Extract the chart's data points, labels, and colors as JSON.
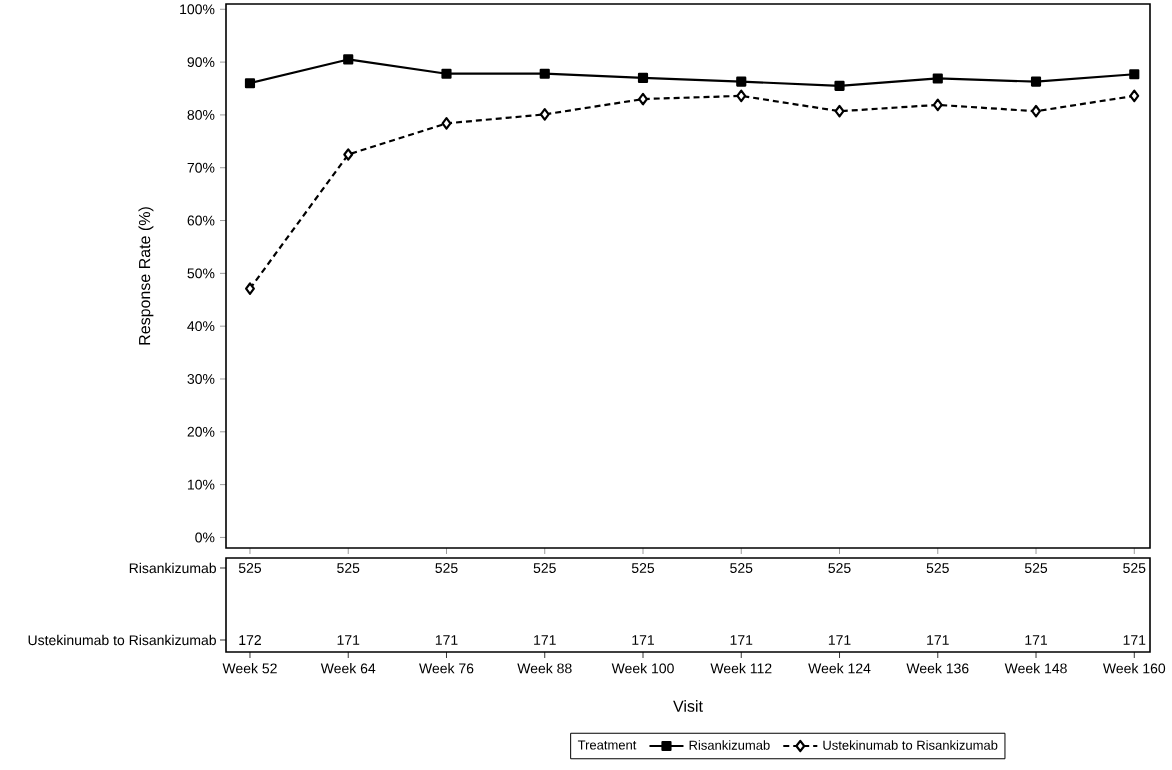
{
  "chart_data": {
    "type": "line",
    "categories": [
      "Week 52",
      "Week 64",
      "Week 76",
      "Week 88",
      "Week 100",
      "Week 112",
      "Week 124",
      "Week 136",
      "Week 148",
      "Week 160"
    ],
    "xlabel": "Visit",
    "ylabel": "Response Rate (%)",
    "ylim": [
      -2,
      101
    ],
    "yticks": [
      {
        "value": 0,
        "label": "0%"
      },
      {
        "value": 10,
        "label": "10%"
      },
      {
        "value": 20,
        "label": "20%"
      },
      {
        "value": 30,
        "label": "30%"
      },
      {
        "value": 40,
        "label": "40%"
      },
      {
        "value": 50,
        "label": "50%"
      },
      {
        "value": 60,
        "label": "60%"
      },
      {
        "value": 70,
        "label": "70%"
      },
      {
        "value": 80,
        "label": "80%"
      },
      {
        "value": 90,
        "label": "90%"
      },
      {
        "value": 100,
        "label": "100%"
      }
    ],
    "legend": "bottom",
    "legend_title": "Treatment",
    "grid": false,
    "series": [
      {
        "name": "Risankizumab",
        "color": "#000000",
        "marker": "square",
        "line_style": "solid",
        "values": [
          86.0,
          90.5,
          87.8,
          87.8,
          87.0,
          86.3,
          85.5,
          86.9,
          86.3,
          87.7
        ]
      },
      {
        "name": "Ustekinumab to Risankizumab",
        "color": "#000000",
        "marker": "diamond",
        "line_style": "dashed",
        "values": [
          47.1,
          72.5,
          78.4,
          80.1,
          83.0,
          83.6,
          80.7,
          81.9,
          80.7,
          83.6
        ]
      }
    ],
    "annotations": [
      "Risankizumab",
      "525",
      "525",
      "525",
      "525",
      "525",
      "525",
      "525",
      "525",
      "525",
      "525",
      "Ustekinumab to Risankizumab",
      "172",
      "171",
      "171",
      "171",
      "171",
      "171",
      "171",
      "171",
      "171",
      "171"
    ]
  }
}
